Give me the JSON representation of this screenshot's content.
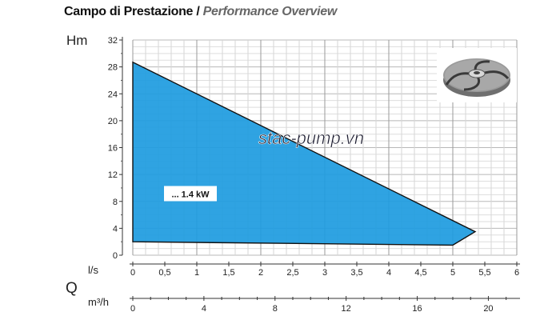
{
  "header": {
    "title_it": "Campo di Prestazione",
    "separator": "/",
    "title_en": "Performance Overview"
  },
  "watermark": "stac-pump.vn",
  "chart_data": {
    "type": "area",
    "ylabel": "Hm",
    "x_unit_ls": "l/s",
    "flow_symbol": "Q",
    "x_unit_m3h": "m³/h",
    "ylim": [
      0,
      32
    ],
    "yticks": [
      0,
      4,
      8,
      12,
      16,
      20,
      24,
      28,
      32
    ],
    "xlim_ls": [
      0,
      6
    ],
    "xticks_ls": [
      "0",
      "0,5",
      "1",
      "1,5",
      "2",
      "2,5",
      "3",
      "3,5",
      "4",
      "4,5",
      "5",
      "5,5",
      "6"
    ],
    "xticks_m3h": [
      "0",
      "4",
      "8",
      "12",
      "16",
      "20"
    ],
    "grid": true,
    "series": [
      {
        "name": "... 1.4 kW",
        "color": "#1d9be0",
        "polygon_ls_hm": [
          [
            0,
            28.7
          ],
          [
            5.35,
            3.5
          ],
          [
            5.0,
            1.5
          ],
          [
            0,
            2.0
          ]
        ]
      }
    ]
  },
  "icon": "impeller-image"
}
